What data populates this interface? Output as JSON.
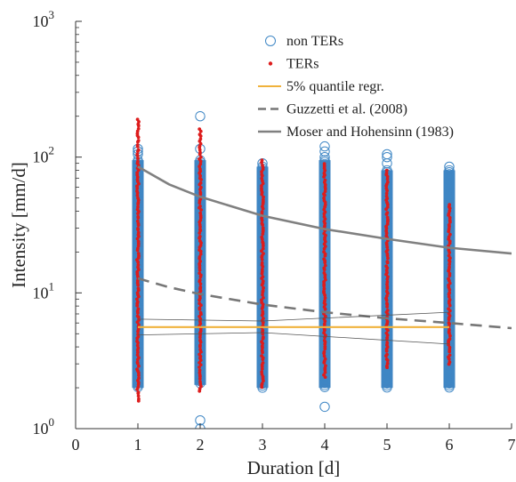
{
  "chart_data": {
    "type": "scatter",
    "title": "",
    "xlabel": "Duration [d]",
    "ylabel": "Intensity [mm/d]",
    "xlim": [
      0,
      7
    ],
    "ylim": [
      1,
      1000
    ],
    "yscale": "log",
    "grid": false,
    "legend_position": "top-right",
    "x_ticks": [
      "0",
      "1",
      "2",
      "3",
      "4",
      "5",
      "6",
      "7"
    ],
    "y_ticks": [
      {
        "base": "10",
        "exp": "0"
      },
      {
        "base": "10",
        "exp": "1"
      },
      {
        "base": "10",
        "exp": "2"
      },
      {
        "base": "10",
        "exp": "3"
      }
    ],
    "legend": [
      {
        "key": "non_ters",
        "label": "non TERs",
        "marker": "circle-open"
      },
      {
        "key": "ters",
        "label": "TERs",
        "marker": "dot"
      },
      {
        "key": "quantile",
        "label": "5% quantile regr.",
        "marker": "line"
      },
      {
        "key": "guzzetti",
        "label": "Guzzetti et al. (2008)",
        "marker": "dashed"
      },
      {
        "key": "moser",
        "label": "Moser and Hohensinn (1983)",
        "marker": "line"
      }
    ],
    "colors": {
      "non_ters": "#3f87c5",
      "non_ters_dense": "#1f6fb7",
      "ters": "#dd1c1c",
      "quantile": "#f0b23c",
      "guzzetti": "#777777",
      "moser": "#808080",
      "confidence": "#555555"
    },
    "scatter": {
      "non_ters": [
        {
          "x": 1,
          "min": 2.0,
          "max": 95,
          "outliers": [
            105,
            110,
            115
          ]
        },
        {
          "x": 2,
          "min": 2.1,
          "max": 95,
          "outliers": [
            1.0,
            1.15,
            115,
            200
          ]
        },
        {
          "x": 3,
          "min": 2.0,
          "max": 85,
          "outliers": [
            90
          ]
        },
        {
          "x": 4,
          "min": 2.0,
          "max": 95,
          "outliers": [
            1.45,
            100,
            110,
            120
          ]
        },
        {
          "x": 5,
          "min": 2.0,
          "max": 80,
          "outliers": [
            90,
            100,
            105
          ]
        },
        {
          "x": 6,
          "min": 2.0,
          "max": 80,
          "outliers": [
            85
          ]
        }
      ],
      "ters": [
        {
          "x": 1,
          "min": 1.6,
          "max": 190
        },
        {
          "x": 2,
          "min": 1.9,
          "max": 160
        },
        {
          "x": 3,
          "min": 2.0,
          "max": 95
        },
        {
          "x": 4,
          "min": 2.4,
          "max": 90
        },
        {
          "x": 5,
          "min": 2.8,
          "max": 80
        },
        {
          "x": 6,
          "min": 3.0,
          "max": 45
        }
      ]
    },
    "lines": {
      "quantile": {
        "x": [
          1,
          6
        ],
        "y": [
          5.6,
          5.6
        ]
      },
      "quantile_upper": {
        "x": [
          1,
          3,
          6
        ],
        "y": [
          6.4,
          6.2,
          7.2
        ]
      },
      "quantile_lower": {
        "x": [
          1,
          3,
          6
        ],
        "y": [
          4.9,
          5.1,
          4.2
        ]
      },
      "guzzetti": {
        "x": [
          1,
          1.5,
          2,
          3,
          4,
          5,
          6,
          7
        ],
        "y": [
          12.8,
          11.0,
          9.8,
          8.2,
          7.2,
          6.5,
          6.0,
          5.5
        ]
      },
      "moser": {
        "x": [
          1,
          1.5,
          2,
          3,
          4,
          5,
          6,
          7
        ],
        "y": [
          85,
          63,
          51,
          37,
          29.5,
          25,
          21.5,
          19.5
        ]
      }
    }
  }
}
